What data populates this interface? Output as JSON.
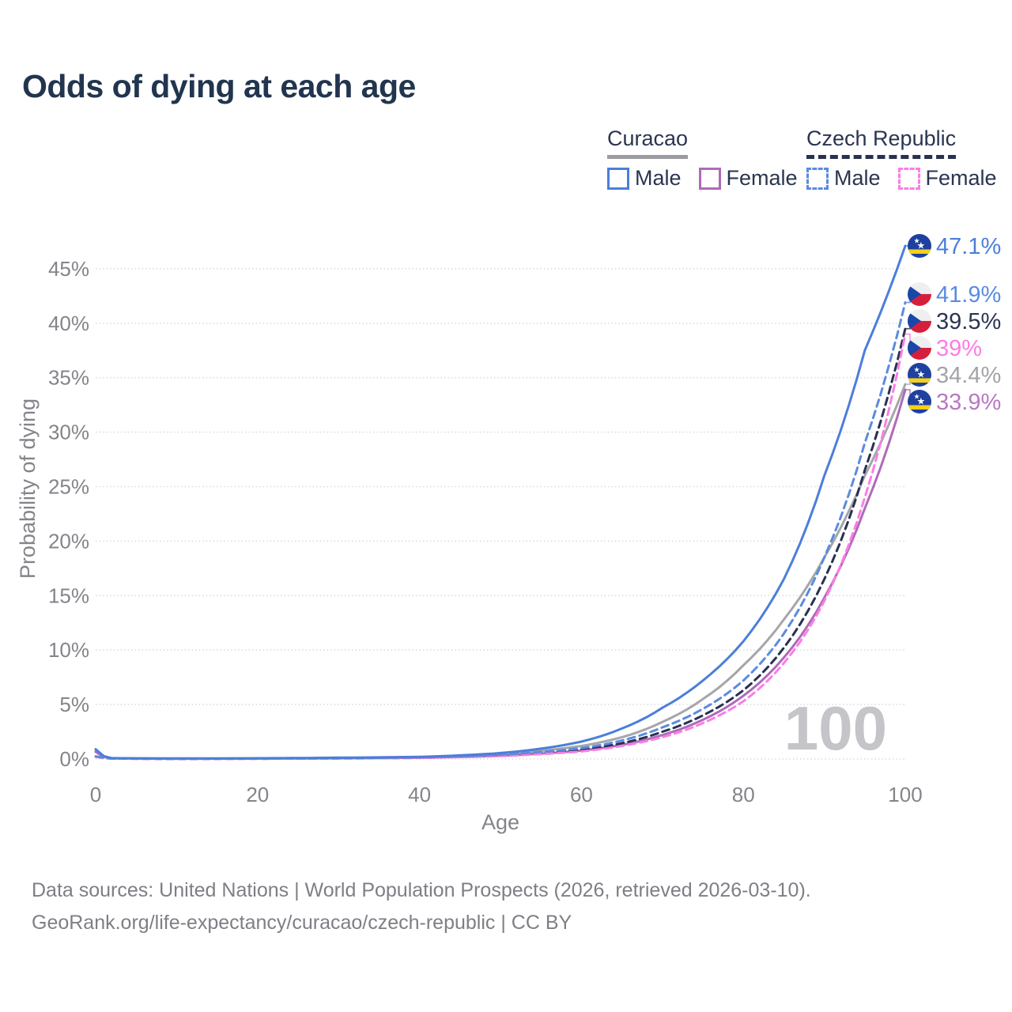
{
  "title": "Odds of dying at each age",
  "legend": {
    "groups": [
      {
        "label": "Curacao",
        "line_style": "solid",
        "underline_color": "#9b9ba1",
        "items": [
          {
            "label": "Male",
            "series_id": "curacao-male"
          },
          {
            "label": "Female",
            "series_id": "curacao-female"
          }
        ]
      },
      {
        "label": "Czech Republic",
        "line_style": "dashed",
        "underline_color": "#27324f",
        "items": [
          {
            "label": "Male",
            "series_id": "czech-male"
          },
          {
            "label": "Female",
            "series_id": "czech-female"
          }
        ]
      }
    ]
  },
  "chart_data": {
    "type": "line",
    "title": "Odds of dying at each age",
    "xlabel": "Age",
    "ylabel": "Probability of dying",
    "xlim": [
      0,
      100
    ],
    "ylim": [
      0,
      47.5
    ],
    "x_ticks": [
      0,
      20,
      40,
      60,
      80,
      100
    ],
    "y_ticks": [
      "0%",
      "5%",
      "10%",
      "15%",
      "20%",
      "25%",
      "30%",
      "35%",
      "40%",
      "45%"
    ],
    "y_tick_values": [
      0,
      5,
      10,
      15,
      20,
      25,
      30,
      35,
      40,
      45
    ],
    "grid": "horizontal-dotted",
    "legend_position": "top-right",
    "age_cursor_watermark": "100",
    "ages": [
      0,
      2,
      10,
      20,
      30,
      40,
      50,
      55,
      60,
      65,
      70,
      75,
      80,
      85,
      90,
      95,
      100
    ],
    "unit": "percent probability of dying at each age",
    "series": [
      {
        "id": "curacao-male",
        "name": "Curacao Male",
        "country": "Curacao",
        "flag": "curacao",
        "color": "#4a7fd9",
        "label_color": "#4a7fd9",
        "dash": "solid",
        "z": 6,
        "end_label": "47.1%",
        "end_value": 47.1,
        "values": [
          0.9,
          0.08,
          0.05,
          0.07,
          0.12,
          0.2,
          0.55,
          0.95,
          1.6,
          2.8,
          4.7,
          7.2,
          10.8,
          16.5,
          26.0,
          37.5,
          47.1
        ]
      },
      {
        "id": "czech-male",
        "name": "Czech Republic Male",
        "country": "Czech Republic",
        "flag": "czech",
        "color": "#5b8be0",
        "label_color": "#5b8be0",
        "dash": "dashed",
        "z": 5,
        "end_label": "41.9%",
        "end_value": 41.9,
        "values": [
          0.25,
          0.05,
          0.02,
          0.04,
          0.08,
          0.15,
          0.4,
          0.65,
          1.0,
          1.7,
          2.9,
          4.6,
          7.2,
          11.5,
          18.5,
          29.0,
          41.9
        ]
      },
      {
        "id": "czech-total",
        "name": "Czech Republic Both sexes",
        "country": "Czech Republic",
        "flag": "czech",
        "color": "#27324f",
        "label_color": "#2a3550",
        "dash": "dashed",
        "z": 3,
        "end_label": "39.5%",
        "end_value": 39.5,
        "values": [
          0.22,
          0.04,
          0.02,
          0.03,
          0.06,
          0.12,
          0.33,
          0.55,
          0.85,
          1.45,
          2.5,
          4.0,
          6.3,
          10.2,
          16.5,
          26.5,
          39.5
        ]
      },
      {
        "id": "czech-female",
        "name": "Czech Republic Female",
        "country": "Czech Republic",
        "flag": "czech",
        "color": "#fb7de5",
        "label_color": "#fb7de5",
        "dash": "dashed",
        "z": 4,
        "end_label": "39%",
        "end_value": 39.0,
        "values": [
          0.2,
          0.04,
          0.01,
          0.03,
          0.05,
          0.1,
          0.27,
          0.45,
          0.7,
          1.2,
          2.0,
          3.3,
          5.3,
          8.8,
          14.5,
          24.0,
          39.0
        ]
      },
      {
        "id": "curacao-total",
        "name": "Curacao Both sexes",
        "country": "Curacao",
        "flag": "curacao",
        "color": "#a6a6aa",
        "label_color": "#a3a3a8",
        "dash": "solid",
        "z": 1,
        "end_label": "34.4%",
        "end_value": 34.4,
        "values": [
          0.75,
          0.07,
          0.04,
          0.05,
          0.09,
          0.16,
          0.45,
          0.75,
          1.2,
          2.0,
          3.4,
          5.5,
          8.6,
          12.8,
          18.5,
          26.0,
          34.4
        ]
      },
      {
        "id": "curacao-female",
        "name": "Curacao Female",
        "country": "Curacao",
        "flag": "curacao",
        "color": "#b06ab8",
        "label_color": "#b778c2",
        "dash": "solid",
        "z": 2,
        "end_label": "33.9%",
        "end_value": 33.9,
        "values": [
          0.65,
          0.06,
          0.03,
          0.04,
          0.07,
          0.12,
          0.3,
          0.5,
          0.78,
          1.3,
          2.2,
          3.6,
          5.8,
          9.3,
          14.8,
          23.0,
          33.9
        ]
      }
    ],
    "flag_colors": {
      "curacao_blue": "#1e41a0",
      "curacao_yellow": "#f7d117",
      "curacao_star": "#ffffff",
      "czech_white": "#efeff1",
      "czech_red": "#d6203b",
      "czech_blue": "#1a47a8"
    }
  },
  "footer": {
    "line1": "Data sources: United Nations | World Population Prospects (2026, retrieved 2026-03-10).",
    "line2": "GeoRank.org/life-expectancy/curacao/czech-republic | CC BY"
  }
}
